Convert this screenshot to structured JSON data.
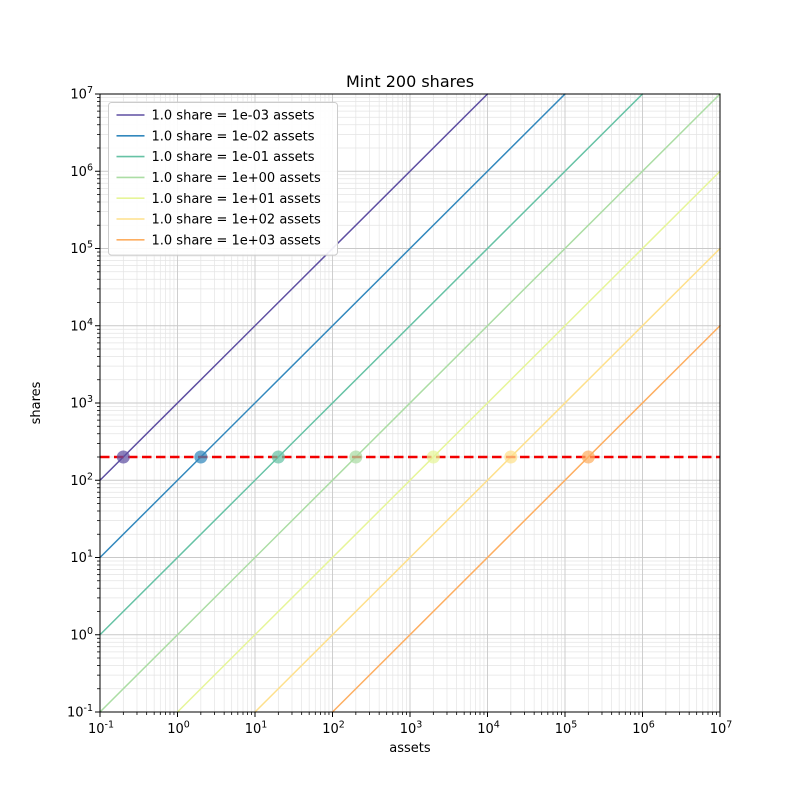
{
  "chart_data": {
    "type": "line",
    "title": "Mint 200 shares",
    "xlabel": "assets",
    "ylabel": "shares",
    "xscale": "log",
    "yscale": "log",
    "xlim": [
      0.1,
      10000000
    ],
    "ylim": [
      0.1,
      10000000
    ],
    "x_tick_exponents": [
      -1,
      0,
      1,
      2,
      3,
      4,
      5,
      6,
      7
    ],
    "y_tick_exponents": [
      -1,
      0,
      1,
      2,
      3,
      4,
      5,
      6,
      7
    ],
    "grid": "both",
    "legend_position": "upper-left",
    "series": [
      {
        "label": "1.0 share = 1e-03 assets",
        "assets_per_share": 0.001,
        "color": "#5e4fa2"
      },
      {
        "label": "1.0 share = 1e-02 assets",
        "assets_per_share": 0.01,
        "color": "#3288bd"
      },
      {
        "label": "1.0 share = 1e-01 assets",
        "assets_per_share": 0.1,
        "color": "#66c2a5"
      },
      {
        "label": "1.0 share = 1e+00 assets",
        "assets_per_share": 1,
        "color": "#abdda4"
      },
      {
        "label": "1.0 share = 1e+01 assets",
        "assets_per_share": 10,
        "color": "#e6f598"
      },
      {
        "label": "1.0 share = 1e+02 assets",
        "assets_per_share": 100,
        "color": "#fee08b"
      },
      {
        "label": "1.0 share = 1e+03 assets",
        "assets_per_share": 1000,
        "color": "#fdae61"
      }
    ],
    "threshold_line": {
      "shares": 200,
      "color": "#f20000",
      "style": "dashed"
    },
    "markers": [
      {
        "assets": 0.2,
        "shares": 200
      },
      {
        "assets": 2,
        "shares": 200
      },
      {
        "assets": 20,
        "shares": 200
      },
      {
        "assets": 200,
        "shares": 200
      },
      {
        "assets": 2000,
        "shares": 200
      },
      {
        "assets": 20000,
        "shares": 200
      },
      {
        "assets": 200000,
        "shares": 200
      }
    ],
    "colors": {
      "grid_major": "#c9c9c9",
      "grid_minor": "#e4e4e4",
      "spine": "#000000",
      "legend_border": "#cccccc",
      "legend_bg": "#ffffff"
    }
  }
}
